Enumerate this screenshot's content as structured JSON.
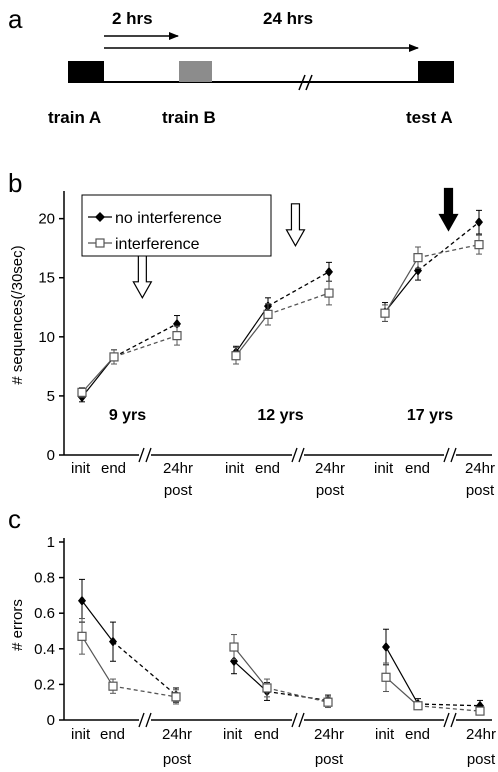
{
  "schematic": {
    "panel_letter": "a",
    "arrow_short_label": "2 hrs",
    "arrow_long_label": "24 hrs",
    "labels": [
      "train A",
      "train B",
      "test A"
    ]
  },
  "legend": {
    "no_interference": "no interference",
    "interference": "interference"
  },
  "colors": {
    "no_interference": "#000000",
    "interference": "#ffffff",
    "train_b_box": "#8c8c8c"
  },
  "groups": [
    "9 yrs",
    "12 yrs",
    "17 yrs"
  ],
  "x_tick_labels": [
    "init",
    "end",
    "24hr",
    "post"
  ],
  "chart_data": [
    {
      "panel_letter": "b",
      "type": "line",
      "ylabel": "# sequences(/30sec)",
      "ylim": [
        0,
        22
      ],
      "yticks": [
        "0",
        "5",
        "10",
        "15",
        "20"
      ],
      "tick_values": [
        0,
        5,
        10,
        15,
        20
      ],
      "arrows": [
        {
          "group": "9 yrs",
          "style": "hollow"
        },
        {
          "group": "12 yrs",
          "style": "hollow"
        },
        {
          "group": "17 yrs",
          "style": "filled"
        }
      ],
      "series": [
        {
          "name": "no interference",
          "marker": "diamond-filled",
          "data": {
            "9 yrs": {
              "init": 4.9,
              "end": 8.3,
              "24hr post": 11.1
            },
            "12 yrs": {
              "init": 8.7,
              "end": 12.6,
              "24hr post": 15.5
            },
            "17 yrs": {
              "init": 12.1,
              "end": 15.6,
              "24hr post": 19.7
            }
          },
          "err": {
            "9 yrs": {
              "init": 0.4,
              "end": 0.6,
              "24hr post": 0.7
            },
            "12 yrs": {
              "init": 0.5,
              "end": 0.7,
              "24hr post": 0.8
            },
            "17 yrs": {
              "init": 0.8,
              "end": 0.8,
              "24hr post": 1.0
            }
          }
        },
        {
          "name": "interference",
          "marker": "square-open",
          "data": {
            "9 yrs": {
              "init": 5.3,
              "end": 8.3,
              "24hr post": 10.1
            },
            "12 yrs": {
              "init": 8.4,
              "end": 11.9,
              "24hr post": 13.7
            },
            "17 yrs": {
              "init": 12.0,
              "end": 16.7,
              "24hr post": 17.8
            }
          },
          "err": {
            "9 yrs": {
              "init": 0.4,
              "end": 0.6,
              "24hr post": 0.8
            },
            "12 yrs": {
              "init": 0.7,
              "end": 0.9,
              "24hr post": 1.0
            },
            "17 yrs": {
              "init": 0.7,
              "end": 0.9,
              "24hr post": 0.8
            }
          }
        }
      ]
    },
    {
      "panel_letter": "c",
      "type": "line",
      "ylabel": "# errors",
      "ylim": [
        0,
        1
      ],
      "yticks": [
        "0",
        "0.2",
        "0.4",
        "0.6",
        "0.8",
        "1"
      ],
      "tick_values": [
        0,
        0.2,
        0.4,
        0.6,
        0.8,
        1
      ],
      "series": [
        {
          "name": "no interference",
          "marker": "diamond-filled",
          "data": {
            "9 yrs": {
              "init": 0.67,
              "end": 0.44,
              "24hr post": 0.14
            },
            "12 yrs": {
              "init": 0.33,
              "end": 0.16,
              "24hr post": 0.11
            },
            "17 yrs": {
              "init": 0.41,
              "end": 0.09,
              "24hr post": 0.08
            }
          },
          "err": {
            "9 yrs": {
              "init": 0.12,
              "end": 0.11,
              "24hr post": 0.04
            },
            "12 yrs": {
              "init": 0.07,
              "end": 0.05,
              "24hr post": 0.03
            },
            "17 yrs": {
              "init": 0.1,
              "end": 0.03,
              "24hr post": 0.03
            }
          }
        },
        {
          "name": "interference",
          "marker": "square-open",
          "data": {
            "9 yrs": {
              "init": 0.47,
              "end": 0.19,
              "24hr post": 0.13
            },
            "12 yrs": {
              "init": 0.41,
              "end": 0.18,
              "24hr post": 0.1
            },
            "17 yrs": {
              "init": 0.24,
              "end": 0.08,
              "24hr post": 0.05
            }
          },
          "err": {
            "9 yrs": {
              "init": 0.1,
              "end": 0.04,
              "24hr post": 0.04
            },
            "12 yrs": {
              "init": 0.07,
              "end": 0.05,
              "24hr post": 0.03
            },
            "17 yrs": {
              "init": 0.08,
              "end": 0.02,
              "24hr post": 0.02
            }
          }
        }
      ]
    }
  ]
}
